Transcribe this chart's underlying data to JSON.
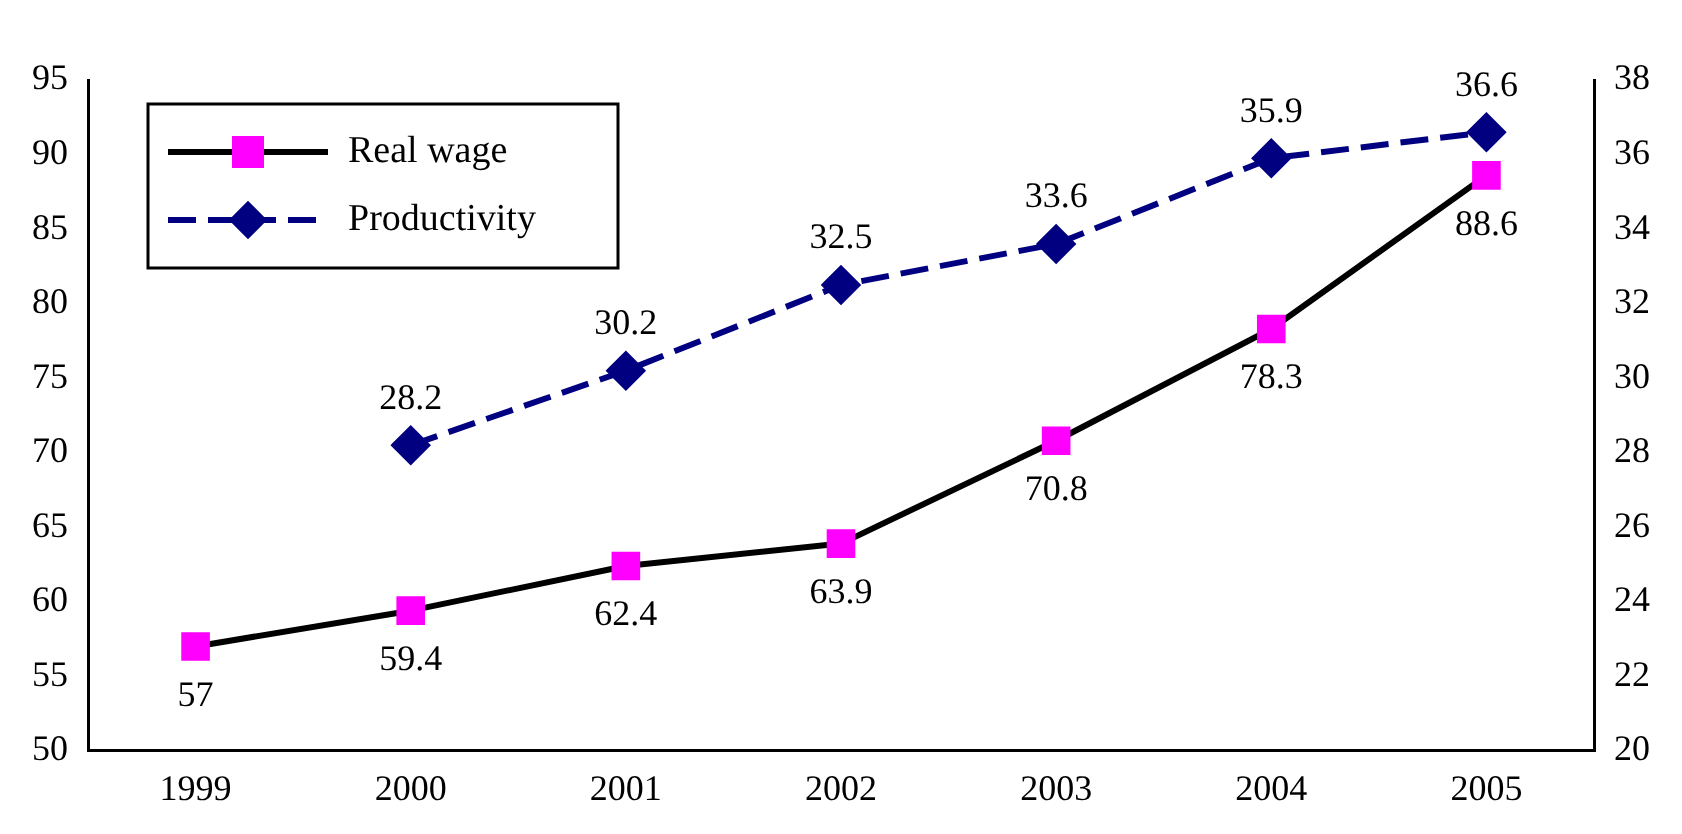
{
  "chart_data": {
    "type": "line",
    "categories": [
      "1999",
      "2000",
      "2001",
      "2002",
      "2003",
      "2004",
      "2005"
    ],
    "series": [
      {
        "name": "Real wage",
        "color": "#000000",
        "colors": [
          "#ff00ff",
          "#ff00ff",
          "#ff00ff",
          "#ff00ff",
          "#ff00ff",
          "#ff00ff",
          "#ff00ff"
        ],
        "values": [
          57,
          59.4,
          62.4,
          63.9,
          70.8,
          78.3,
          88.6
        ],
        "marker": "square",
        "line_style": "solid"
      },
      {
        "name": "Productivity",
        "color": "#000080",
        "values": [
          null,
          28.2,
          30.2,
          32.5,
          33.6,
          35.9,
          36.6
        ],
        "axis": "y2",
        "marker": "diamond",
        "line_style": "dashed"
      }
    ],
    "ylim": [
      50,
      95
    ],
    "yticks": [
      50,
      55,
      60,
      65,
      70,
      75,
      80,
      85,
      90,
      95
    ],
    "y2lim": [
      20,
      38
    ],
    "y2ticks": [
      20,
      22,
      24,
      26,
      28,
      30,
      32,
      34,
      36,
      38
    ],
    "grid": false,
    "legend": "top left",
    "data_labels": true
  }
}
